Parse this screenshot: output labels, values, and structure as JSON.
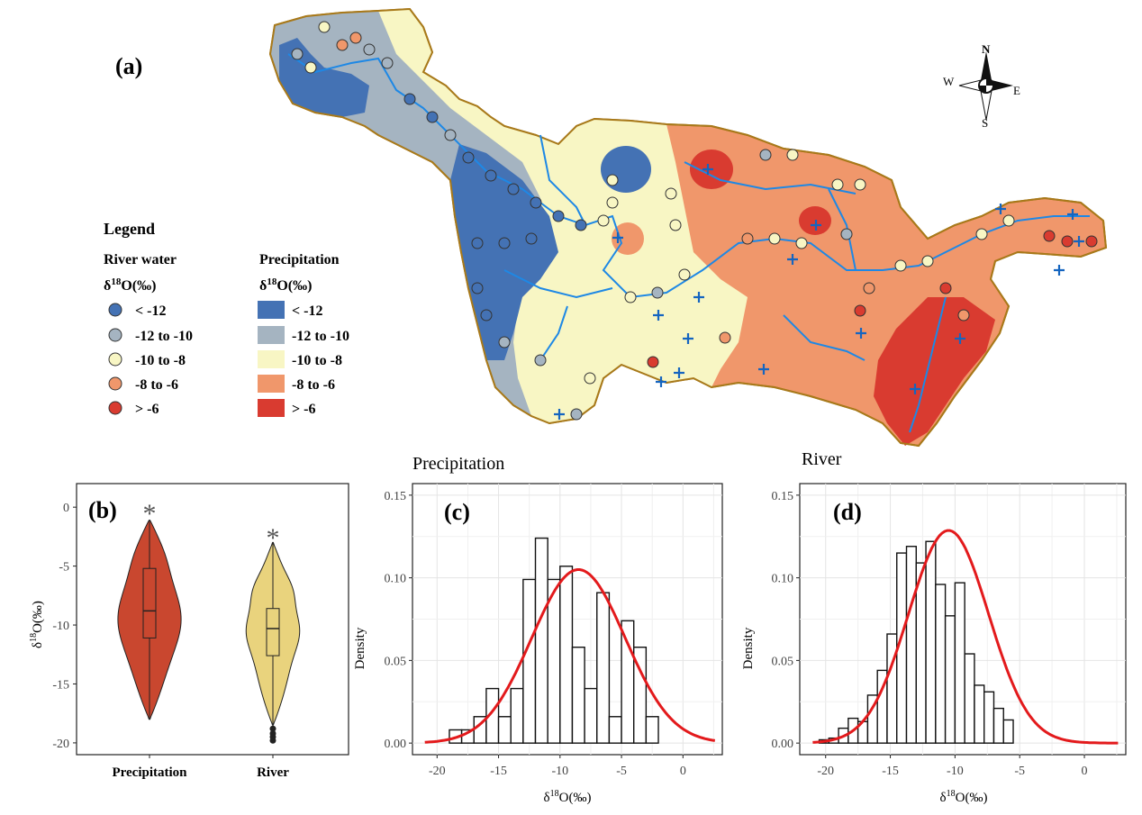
{
  "panel_labels": {
    "a": "(a)",
    "b": "(b)",
    "c": "(c)",
    "d": "(d)"
  },
  "compass": {
    "n": "N",
    "s": "S",
    "e": "E",
    "w": "W"
  },
  "legend": {
    "title": "Legend",
    "river_title": "River water",
    "precip_title": "Precipitation",
    "unit_main": "δ",
    "unit_sup": "18",
    "unit_tail": "O(‰)",
    "classes": [
      {
        "label": "< -12",
        "color": "#4472b4"
      },
      {
        "label": "-12 to -10",
        "color": "#a5b4c1"
      },
      {
        "label": "-10 to -8",
        "color": "#f8f6c4"
      },
      {
        "label": "-8 to -6",
        "color": "#f0976b"
      },
      {
        "label": "> -6",
        "color": "#d93b30"
      }
    ]
  },
  "chart_data": [
    {
      "type": "violin",
      "panel": "(b)",
      "categories": [
        "Precipitation",
        "River"
      ],
      "ylabel_main": "δ",
      "ylabel_sup": "18",
      "ylabel_tail": "O(‰)",
      "ylim": [
        -21,
        2
      ],
      "yticks": [
        0,
        -5,
        -10,
        -15,
        -20
      ],
      "ytick_labels": [
        "0",
        "-5",
        "-10",
        "-15",
        "-20"
      ],
      "significance": "*",
      "colors": [
        "#c9472f",
        "#e9d37d"
      ],
      "stats": [
        {
          "name": "Precipitation",
          "min": -18,
          "max": -1.1,
          "q1": -11.1,
          "median": -8.8,
          "q3": -5.2,
          "outliers": []
        },
        {
          "name": "River",
          "min": -18.5,
          "max": -3.0,
          "q1": -12.6,
          "median": -10.3,
          "q3": -8.6,
          "outliers": [
            -18.8,
            -19.2,
            -19.5,
            -19.8
          ]
        }
      ]
    },
    {
      "type": "histogram",
      "panel": "(c)",
      "title": "Precipitation",
      "xlabel_main": "δ",
      "xlabel_sup": "18",
      "xlabel_tail": "O(‰)",
      "ylabel": "Density",
      "xlim": [
        -22,
        3.2
      ],
      "ylim": [
        -0.007,
        0.157
      ],
      "xticks": [
        -20,
        -15,
        -10,
        -5,
        0
      ],
      "xtick_labels": [
        "-20",
        "-15",
        "-10",
        "-5",
        "0"
      ],
      "yticks": [
        0,
        0.05,
        0.1,
        0.15
      ],
      "ytick_labels": [
        "0.00",
        "0.05",
        "0.10",
        "0.15"
      ],
      "bin_start": -19,
      "bin_width": 1,
      "densities": [
        0.008,
        0.008,
        0.016,
        0.033,
        0.016,
        0.033,
        0.099,
        0.124,
        0.099,
        0.107,
        0.058,
        0.033,
        0.091,
        0.016,
        0.074,
        0.058,
        0.016
      ],
      "fit": {
        "mean": -8.5,
        "sd": 3.8,
        "color": "#e31a1c"
      }
    },
    {
      "type": "histogram",
      "panel": "(d)",
      "title": "River",
      "xlabel_main": "δ",
      "xlabel_sup": "18",
      "xlabel_tail": "O(‰)",
      "ylabel": "Density",
      "xlim": [
        -22,
        3.2
      ],
      "ylim": [
        -0.007,
        0.157
      ],
      "xticks": [
        -20,
        -15,
        -10,
        -5,
        0
      ],
      "xtick_labels": [
        "-20",
        "-15",
        "-10",
        "-5",
        "0"
      ],
      "yticks": [
        0,
        0.05,
        0.1,
        0.15
      ],
      "ytick_labels": [
        "0.00",
        "0.05",
        "0.10",
        "0.15"
      ],
      "bin_start": -20.5,
      "bin_width": 0.75,
      "densities": [
        0.002,
        0.003,
        0.009,
        0.015,
        0.013,
        0.029,
        0.044,
        0.066,
        0.115,
        0.119,
        0.109,
        0.122,
        0.096,
        0.077,
        0.097,
        0.054,
        0.035,
        0.031,
        0.021,
        0.014
      ],
      "fit": {
        "mean": -10.5,
        "sd": 3.1,
        "color": "#e31a1c"
      }
    }
  ]
}
